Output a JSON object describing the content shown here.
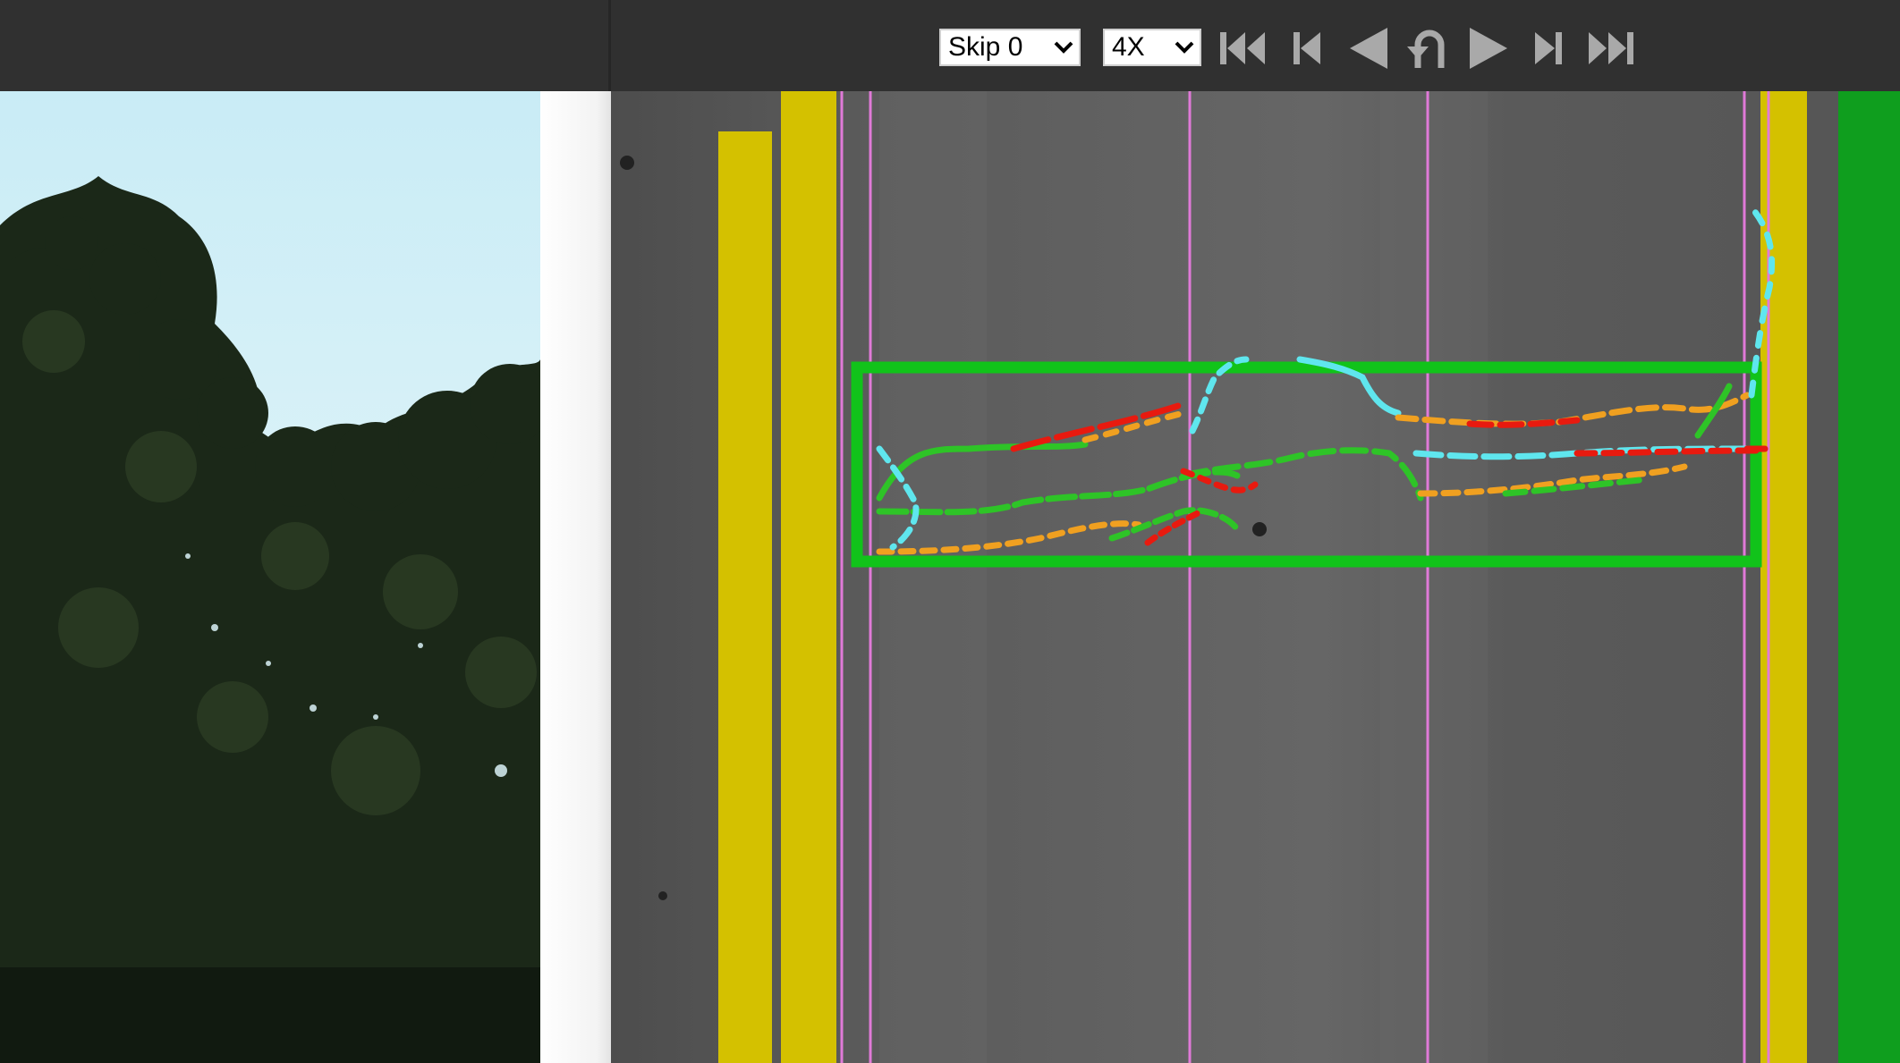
{
  "toolbar": {
    "skip_select": {
      "value": "Skip 0",
      "options": [
        "Skip 0"
      ]
    },
    "speed_select": {
      "value": "4X",
      "options": [
        "4X"
      ]
    },
    "buttons": [
      {
        "name": "first-frame-icon"
      },
      {
        "name": "previous-segment-icon"
      },
      {
        "name": "play-reverse-icon"
      },
      {
        "name": "loop-icon"
      },
      {
        "name": "play-forward-icon"
      },
      {
        "name": "next-segment-icon"
      },
      {
        "name": "last-frame-icon"
      }
    ]
  },
  "colors": {
    "toolbar_bg": "#303030",
    "lane_marking": "#d4c100",
    "wheel_path_line": "#e07ad8",
    "distress_box": "#11c31a",
    "shoulder": "#0f9e1e",
    "crack_red": "#e81a0f",
    "crack_orange": "#f0a020",
    "crack_cyan": "#5fe6ee",
    "crack_green": "#2ec427"
  },
  "panels": {
    "left": "roadside-camera-image",
    "right": "pavement-distress-image"
  }
}
